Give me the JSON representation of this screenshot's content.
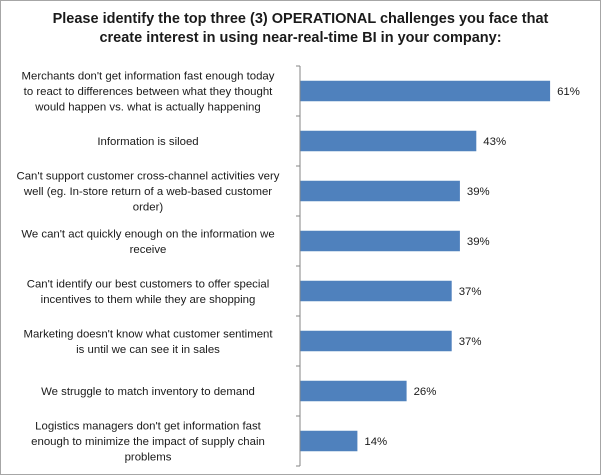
{
  "chart_data": {
    "type": "bar",
    "orientation": "horizontal",
    "title": "Please identify the top three (3) OPERATIONAL challenges you face that create interest in using near-real-time BI in your company:",
    "categories": [
      "Merchants don't get  information fast enough today to react to differences between  what they thought would happen vs. what is actually happening",
      "Information is siloed",
      "Can't support customer cross-channel activities very well (eg.  In-store return of a web-based customer order)",
      "We can't act quickly enough on the information we receive",
      "Can't identify our best customers to offer special incentives to them  while they are shopping",
      "Marketing doesn't know what customer sentiment is until we can see  it in sales",
      "We struggle to match inventory to demand",
      "Logistics managers don't get information fast enough to minimize the impact of supply chain problems"
    ],
    "category_lines": [
      [
        "Merchants don't get  information fast enough today",
        "to react to differences between  what they thought",
        "would happen vs. what is actually happening"
      ],
      [
        "Information is siloed"
      ],
      [
        "Can't support customer cross-channel activities very",
        "well (eg.  In-store return of a web-based customer",
        "order)"
      ],
      [
        "We can't act quickly enough on the information we",
        "receive"
      ],
      [
        "Can't identify our best customers to offer special",
        "incentives to them  while they are shopping"
      ],
      [
        "Marketing doesn't know what customer sentiment",
        "is until we can see  it in sales"
      ],
      [
        "We struggle to match inventory to demand"
      ],
      [
        "Logistics managers don't get information fast",
        "enough to minimize the impact of supply chain",
        "problems"
      ]
    ],
    "values": [
      61,
      43,
      39,
      39,
      37,
      37,
      26,
      14
    ],
    "data_labels": [
      "61%",
      "43%",
      "39%",
      "39%",
      "37%",
      "37%",
      "26%",
      "14%"
    ],
    "unit": "%",
    "xlim": [
      0,
      70
    ],
    "grid": false,
    "legend": "none",
    "bar_color": "#4f81bd",
    "axis_color": "#868686"
  }
}
